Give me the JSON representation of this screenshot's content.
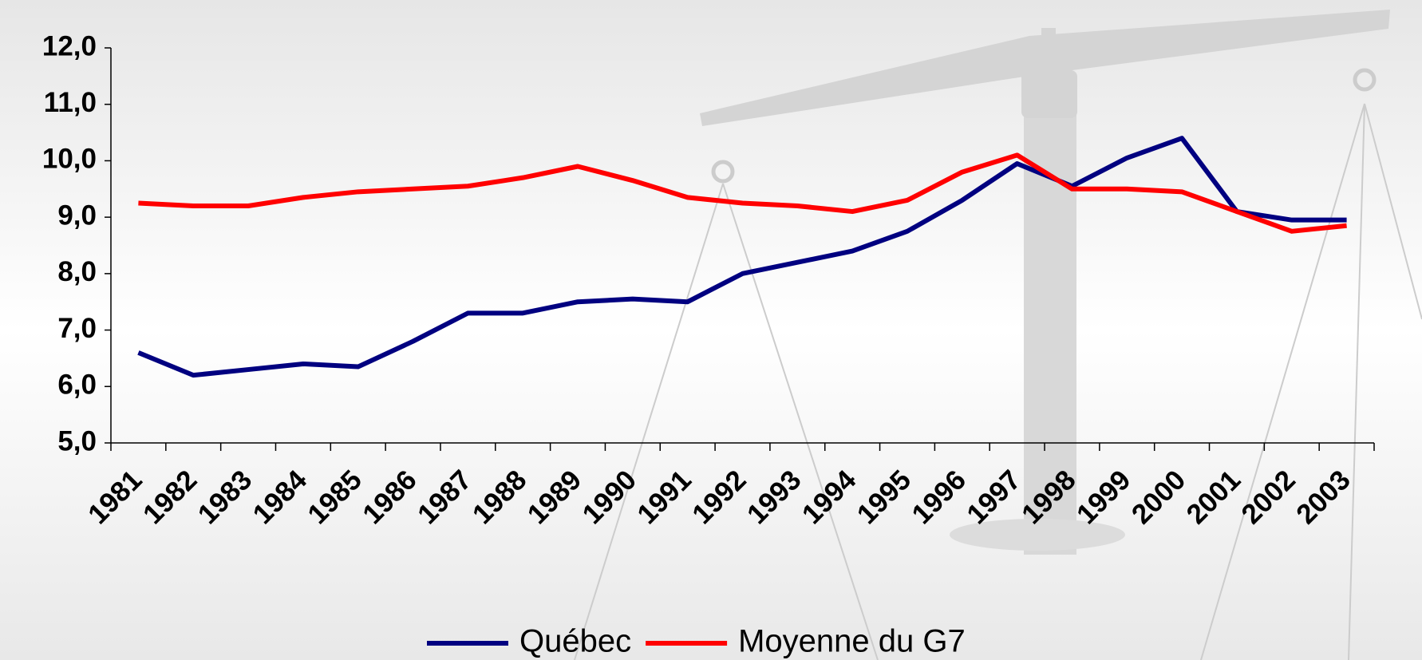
{
  "chart_data": {
    "type": "line",
    "categories": [
      "1981",
      "1982",
      "1983",
      "1984",
      "1985",
      "1986",
      "1987",
      "1988",
      "1989",
      "1990",
      "1991",
      "1992",
      "1993",
      "1994",
      "1995",
      "1996",
      "1997",
      "1998",
      "1999",
      "2000",
      "2001",
      "2002",
      "2003"
    ],
    "series": [
      {
        "name": "Québec",
        "color": "#000080",
        "values": [
          6.6,
          6.2,
          6.3,
          6.4,
          6.35,
          6.8,
          7.3,
          7.3,
          7.5,
          7.55,
          7.5,
          8.0,
          8.2,
          8.4,
          8.75,
          9.3,
          9.95,
          9.55,
          10.05,
          10.4,
          9.1,
          8.95,
          8.95
        ]
      },
      {
        "name": "Moyenne du G7",
        "color": "#ff0000",
        "values": [
          9.25,
          9.2,
          9.2,
          9.35,
          9.45,
          9.5,
          9.55,
          9.7,
          9.9,
          9.65,
          9.35,
          9.25,
          9.2,
          9.1,
          9.3,
          9.8,
          10.1,
          9.5,
          9.5,
          9.45,
          9.1,
          8.75,
          8.85
        ]
      }
    ],
    "ylim": [
      5,
      12
    ],
    "yticks": [
      {
        "value": 5,
        "label": "5,0"
      },
      {
        "value": 6,
        "label": "6,0"
      },
      {
        "value": 7,
        "label": "7,0"
      },
      {
        "value": 8,
        "label": "8,0"
      },
      {
        "value": 9,
        "label": "9,0"
      },
      {
        "value": 10,
        "label": "10,0"
      },
      {
        "value": 11,
        "label": "11,0"
      },
      {
        "value": 12,
        "label": "12,0"
      }
    ],
    "legend": "bottom"
  }
}
